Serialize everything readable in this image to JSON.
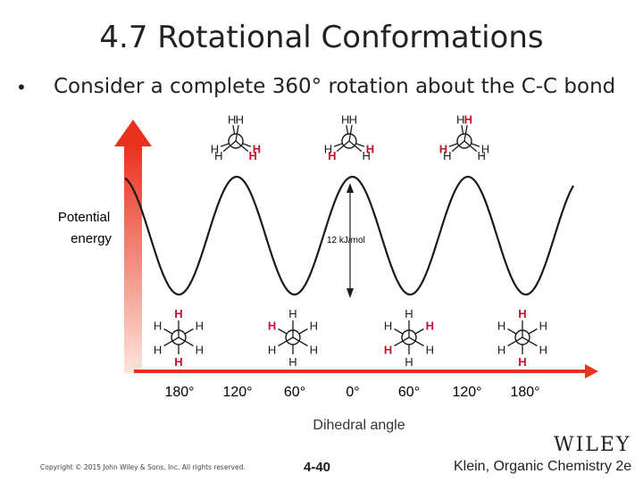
{
  "slide": {
    "title": "4.7 Rotational Conformations",
    "bullet_symbol": "•",
    "bullet_text": "Consider a complete 360° rotation about the C-C bond"
  },
  "diagram": {
    "y_axis_label_line1": "Potential",
    "y_axis_label_line2": "energy",
    "x_axis_label": "Dihedral angle",
    "x_ticks": [
      "180°",
      "120°",
      "60°",
      "0°",
      "60°",
      "120°",
      "180°"
    ],
    "barrier_label": "12 kJ/mol",
    "atom_label": "H",
    "colors": {
      "curve": "#1a1a1a",
      "highlight_atom": "#c8102e",
      "arrow_top": "#e8321e",
      "arrow_bottom": "#fde4dc",
      "x_axis": "#e8321e"
    }
  },
  "footer": {
    "copyright": "Copyright © 2015 John Wiley & Sons, Inc. All rights reserved.",
    "page_number": "4-40",
    "book": "Klein, Organic Chemistry 2e",
    "publisher_logo": "WILEY"
  }
}
